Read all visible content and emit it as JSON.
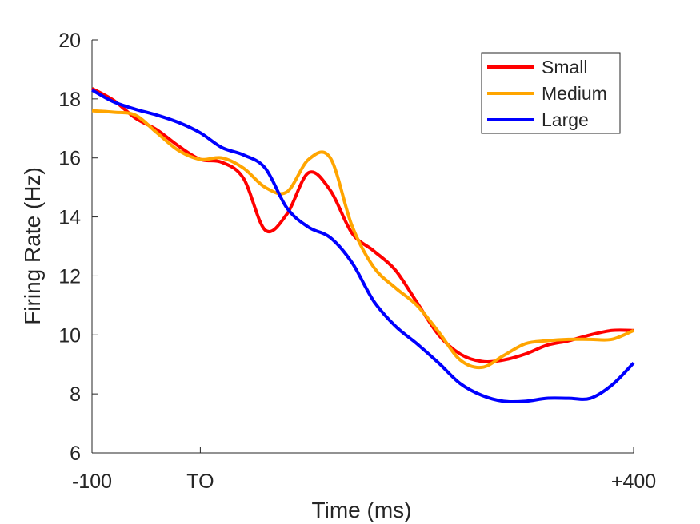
{
  "chart_data": {
    "type": "line",
    "title": "",
    "xlabel": "Time (ms)",
    "ylabel": "Firing Rate (Hz)",
    "xlim": [
      -100,
      400
    ],
    "ylim": [
      6,
      20
    ],
    "xticks": [
      {
        "value": -100,
        "label": "-100"
      },
      {
        "value": 0,
        "label": "TO"
      },
      {
        "value": 400,
        "label": "+400"
      }
    ],
    "yticks": [
      {
        "value": 6,
        "label": "6"
      },
      {
        "value": 8,
        "label": "8"
      },
      {
        "value": 10,
        "label": "10"
      },
      {
        "value": 12,
        "label": "12"
      },
      {
        "value": 14,
        "label": "14"
      },
      {
        "value": 16,
        "label": "16"
      },
      {
        "value": 18,
        "label": "18"
      },
      {
        "value": 20,
        "label": "20"
      }
    ],
    "grid": false,
    "legend_position": "top-right",
    "series": [
      {
        "name": "Small",
        "color": "#ff0000",
        "x": [
          -100,
          -80,
          -60,
          -40,
          -20,
          0,
          20,
          40,
          60,
          80,
          100,
          120,
          140,
          160,
          180,
          200,
          220,
          240,
          260,
          280,
          300,
          320,
          340,
          360,
          380,
          400
        ],
        "y": [
          18.35,
          17.95,
          17.35,
          16.95,
          16.4,
          15.95,
          15.85,
          15.3,
          13.55,
          14.1,
          15.5,
          14.9,
          13.45,
          12.85,
          12.2,
          11.1,
          10.0,
          9.35,
          9.1,
          9.15,
          9.35,
          9.65,
          9.8,
          10.0,
          10.15,
          10.15
        ]
      },
      {
        "name": "Medium",
        "color": "#ffa500",
        "x": [
          -100,
          -80,
          -60,
          -40,
          -20,
          0,
          20,
          40,
          60,
          80,
          100,
          120,
          140,
          160,
          180,
          200,
          220,
          240,
          260,
          280,
          300,
          320,
          340,
          360,
          380,
          400
        ],
        "y": [
          17.6,
          17.55,
          17.45,
          16.85,
          16.25,
          15.95,
          16.0,
          15.65,
          15.0,
          14.85,
          15.95,
          16.0,
          13.7,
          12.3,
          11.6,
          11.0,
          10.1,
          9.15,
          8.9,
          9.3,
          9.7,
          9.8,
          9.85,
          9.85,
          9.85,
          10.15
        ]
      },
      {
        "name": "Large",
        "color": "#0000ff",
        "x": [
          -100,
          -80,
          -60,
          -40,
          -20,
          0,
          20,
          40,
          60,
          80,
          100,
          120,
          140,
          160,
          180,
          200,
          220,
          240,
          260,
          280,
          300,
          320,
          340,
          360,
          380,
          400
        ],
        "y": [
          18.3,
          17.9,
          17.65,
          17.45,
          17.2,
          16.85,
          16.35,
          16.1,
          15.65,
          14.3,
          13.65,
          13.3,
          12.45,
          11.15,
          10.3,
          9.7,
          9.05,
          8.35,
          7.95,
          7.75,
          7.75,
          7.85,
          7.85,
          7.85,
          8.3,
          9.05
        ]
      }
    ]
  }
}
